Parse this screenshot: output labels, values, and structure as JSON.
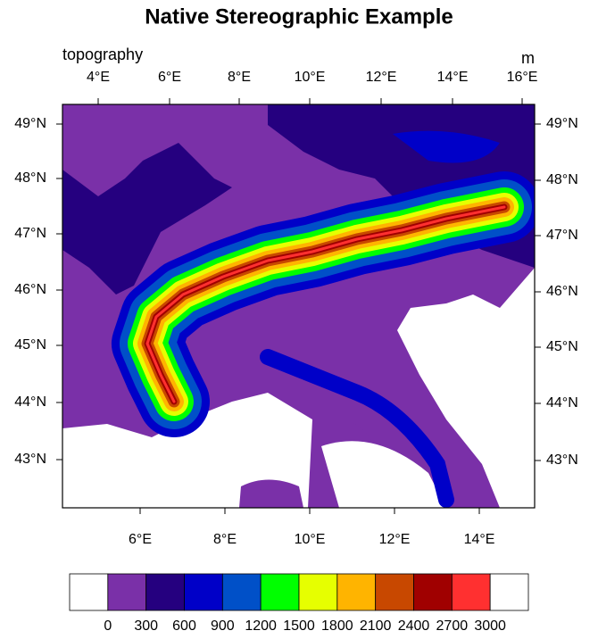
{
  "title": "Native Stereographic Example",
  "left_label": "topography",
  "right_label": "m",
  "top_lon_labels": [
    "4°E",
    "6°E",
    "8°E",
    "10°E",
    "12°E",
    "14°E",
    "16°E"
  ],
  "bottom_lon_labels": [
    "6°E",
    "8°E",
    "10°E",
    "12°E",
    "14°E"
  ],
  "left_lat_labels": [
    "49°N",
    "48°N",
    "47°N",
    "46°N",
    "45°N",
    "44°N",
    "43°N"
  ],
  "right_lat_labels": [
    "49°N",
    "48°N",
    "47°N",
    "46°N",
    "45°N",
    "44°N",
    "43°N"
  ],
  "colorbar": {
    "levels": [
      0,
      300,
      600,
      900,
      1200,
      1500,
      1800,
      2100,
      2400,
      2700,
      3000
    ],
    "colors": [
      "#ffffff",
      "#7a30a8",
      "#25007f",
      "#0000c8",
      "#0050c8",
      "#00ff00",
      "#e6ff00",
      "#ffb400",
      "#c84800",
      "#a00000",
      "#ff3030",
      "#ffffff"
    ]
  }
}
